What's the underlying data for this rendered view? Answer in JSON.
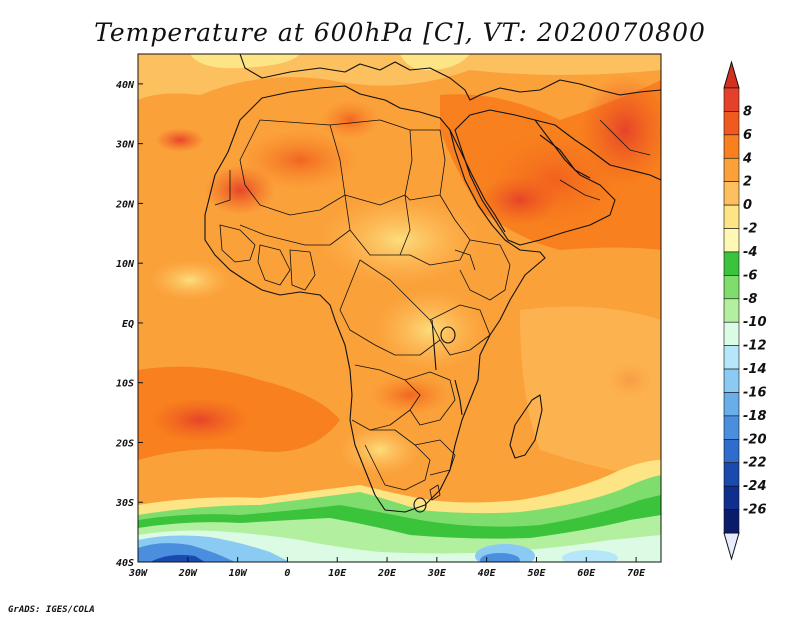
{
  "title": "Temperature at 600hPa [C], VT: 2020070800",
  "credit": "GrADS: IGES/COLA",
  "map": {
    "lon_min": -30,
    "lon_max": 75,
    "lat_min": -40,
    "lat_max": 45,
    "lon_ticks": [
      {
        "value": -30,
        "label": "30W"
      },
      {
        "value": -20,
        "label": "20W"
      },
      {
        "value": -10,
        "label": "10W"
      },
      {
        "value": 0,
        "label": "0"
      },
      {
        "value": 10,
        "label": "10E"
      },
      {
        "value": 20,
        "label": "20E"
      },
      {
        "value": 30,
        "label": "30E"
      },
      {
        "value": 40,
        "label": "40E"
      },
      {
        "value": 50,
        "label": "50E"
      },
      {
        "value": 60,
        "label": "60E"
      },
      {
        "value": 70,
        "label": "70E"
      }
    ],
    "lat_ticks": [
      {
        "value": 40,
        "label": "40N"
      },
      {
        "value": 30,
        "label": "30N"
      },
      {
        "value": 20,
        "label": "20N"
      },
      {
        "value": 10,
        "label": "10N"
      },
      {
        "value": 0,
        "label": "EQ"
      },
      {
        "value": -10,
        "label": "10S"
      },
      {
        "value": -20,
        "label": "20S"
      },
      {
        "value": -30,
        "label": "30S"
      },
      {
        "value": -40,
        "label": "40S"
      }
    ]
  },
  "colorbar": {
    "levels": [
      "8",
      "6",
      "4",
      "2",
      "0",
      "-2",
      "-4",
      "-6",
      "-8",
      "-10",
      "-12",
      "-14",
      "-16",
      "-18",
      "-20",
      "-22",
      "-24",
      "-26"
    ],
    "colors": [
      "#e5402a",
      "#f05a1e",
      "#f8801e",
      "#fba13a",
      "#fdc05e",
      "#fde485",
      "#fff7b4",
      "#3cc33c",
      "#7fdd6e",
      "#b2ef9f",
      "#dcfbe4",
      "#b6e6f9",
      "#8bcbf3",
      "#6aaee9",
      "#4a8fdd",
      "#2f6ccb",
      "#1b4aae",
      "#0f2f8f",
      "#0a1b6b"
    ],
    "top_color": "#d43020",
    "bottom_color": "#e8ecff"
  }
}
